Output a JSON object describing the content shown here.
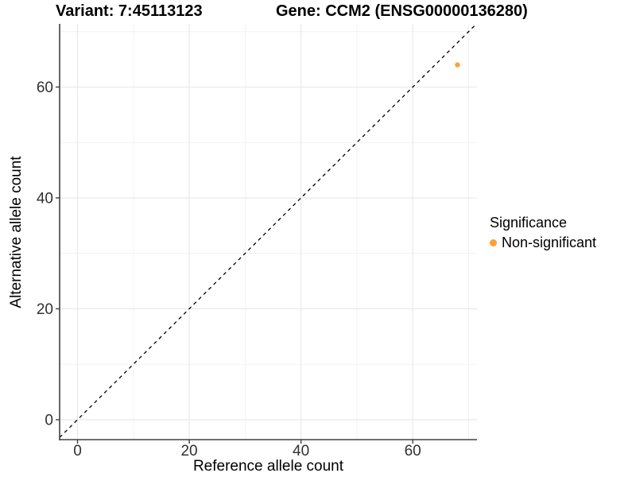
{
  "titles": {
    "left": "Variant: 7:45113123",
    "right": "Gene: CCM2 (ENSG00000136280)"
  },
  "chart_data": {
    "type": "scatter",
    "xlabel": "Reference allele count",
    "ylabel": "Alternative allele count",
    "xlim": [
      -3.2,
      71.5
    ],
    "ylim": [
      -3.6,
      71.4
    ],
    "x_ticks": [
      0,
      20,
      40,
      60
    ],
    "y_ticks": [
      0,
      20,
      40,
      60
    ],
    "x_minor_ticks": [
      10,
      30,
      50,
      70
    ],
    "y_minor_ticks": [
      10,
      30,
      50,
      70
    ],
    "grid": true,
    "points": [
      {
        "x": 68,
        "y": 64,
        "series": "Non-significant"
      }
    ],
    "reference_line": {
      "slope": 1,
      "intercept": 0,
      "style": "dashed"
    },
    "legend": {
      "title": "Significance",
      "position": "right",
      "items": [
        {
          "label": "Non-significant",
          "color": "#F9A23B"
        }
      ]
    },
    "colors": {
      "point": "#F9A23B",
      "grid_major": "#E7E7E7",
      "grid_minor": "#F1F1F1",
      "axis": "#404040",
      "tick_label": "#303030",
      "reference_line": "#000000"
    }
  }
}
